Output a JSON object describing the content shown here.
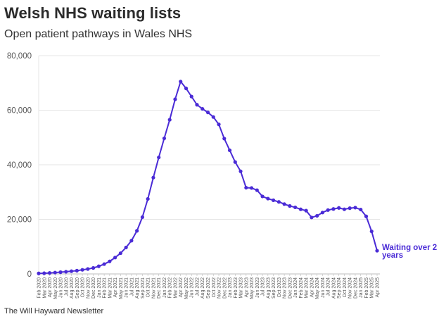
{
  "title": "Welsh NHS waiting lists",
  "subtitle": "Open patient pathways in Wales NHS",
  "source": "The Will Hayward Newsletter",
  "colors": {
    "line": "#4a2bd6",
    "grid": "#e6e6e6",
    "axis": "#bdbdbd"
  },
  "chart_data": {
    "type": "line",
    "ylim": [
      0,
      80000
    ],
    "yticks": [
      0,
      20000,
      40000,
      60000,
      80000
    ],
    "ytick_labels": [
      "0",
      "20,000",
      "40,000",
      "60,000",
      "80,000"
    ],
    "grid": true,
    "categories": [
      "Feb 2020",
      "Mar 2020",
      "Apr 2020",
      "May 2020",
      "Jun 2020",
      "Jul 2020",
      "Aug 2020",
      "Sep 2020",
      "Oct 2020",
      "Nov 2020",
      "Dec 2020",
      "Jan 2021",
      "Feb 2021",
      "Mar 2021",
      "Apr 2021",
      "May 2021",
      "Jun 2021",
      "Jul 2021",
      "Aug 2021",
      "Sep 2021",
      "Oct 2021",
      "Nov 2021",
      "Dec 2021",
      "Jan 2022",
      "Feb 2022",
      "Mar 2022",
      "Apr 2022",
      "May 2022",
      "Jun 2022",
      "Jul 2022",
      "Aug 2022",
      "Sep 2022",
      "Oct 2022",
      "Nov 2022",
      "Dec 2022",
      "Jan 2023",
      "Feb 2023",
      "Mar 2023",
      "Apr 2023",
      "May 2023",
      "Jun 2023",
      "Jul 2023",
      "Aug 2023",
      "Sep 2023",
      "Oct 2023",
      "Nov 2023",
      "Dec 2023",
      "Jan 2024",
      "Feb 2024",
      "Mar 2024",
      "Apr 2024",
      "May 2024",
      "Jun 2024",
      "Jul 2024",
      "Aug 2024",
      "Sep 2024",
      "Oct 2024",
      "Nov 2024",
      "Dec 2024",
      "Jan 2025",
      "Feb 2025",
      "Mar 2025",
      "Apr 2025"
    ],
    "series": [
      {
        "name": "Waiting over 2 years",
        "values": [
          200,
          250,
          350,
          500,
          650,
          800,
          1000,
          1200,
          1500,
          1800,
          2200,
          2800,
          3600,
          4600,
          6000,
          7600,
          9700,
          12200,
          15800,
          20800,
          27500,
          35300,
          42700,
          49700,
          56500,
          64000,
          70500,
          68000,
          65000,
          62000,
          60500,
          59200,
          57500,
          54800,
          49600,
          45300,
          41000,
          37600,
          31600,
          31500,
          30700,
          28400,
          27600,
          27000,
          26400,
          25600,
          24900,
          24400,
          23700,
          23200,
          20700,
          21300,
          22500,
          23400,
          23800,
          24200,
          23700,
          24100,
          24300,
          23600,
          21100,
          15600,
          8500
        ]
      }
    ],
    "end_annotation_lines": [
      "Waiting over 2",
      "years"
    ]
  }
}
